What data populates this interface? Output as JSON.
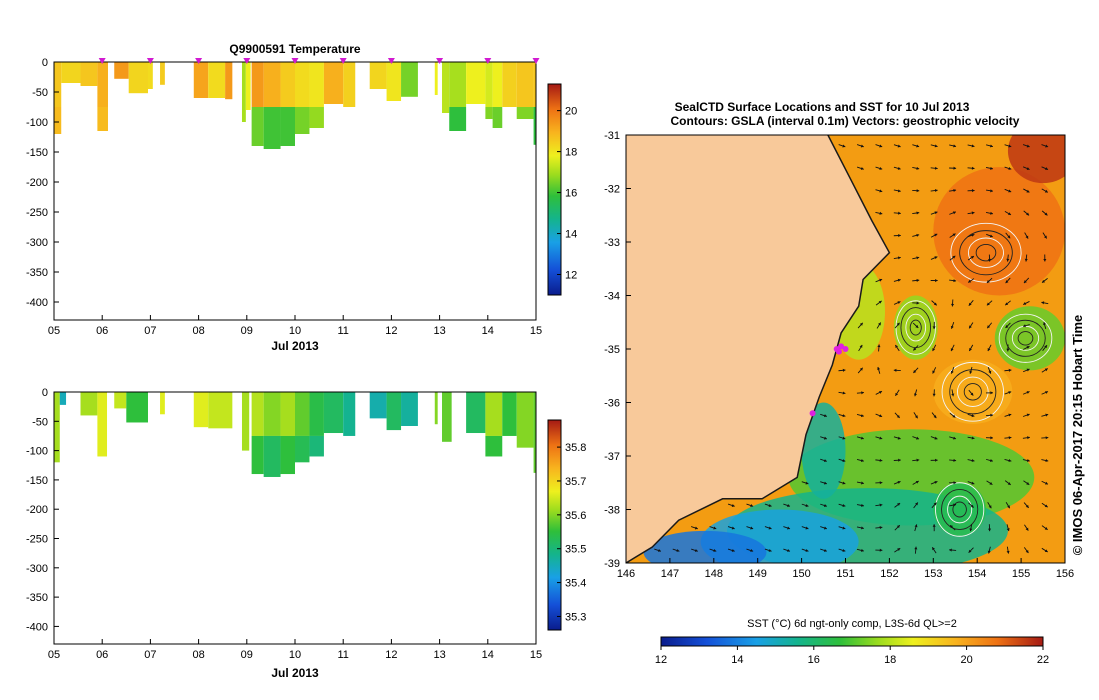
{
  "chart_data": [
    {
      "type": "heatmap",
      "title": "Q9900591  Temperature",
      "xlabel": "Jul 2013",
      "ylabel": "",
      "xlim": [
        5,
        15
      ],
      "ylim": [
        -430,
        0
      ],
      "x_ticks": [
        "05",
        "06",
        "07",
        "08",
        "09",
        "10",
        "11",
        "12",
        "13",
        "14",
        "15"
      ],
      "y_ticks": [
        "0",
        "-50",
        "-100",
        "-150",
        "-200",
        "-250",
        "-300",
        "-350",
        "-400"
      ],
      "profile_markers_day": [
        6.0,
        7.0,
        8.0,
        9.0,
        10.0,
        11.0,
        12.0,
        13.0,
        14.0,
        15.0
      ],
      "colorbar": {
        "ticks": [
          "12",
          "14",
          "16",
          "18",
          "20"
        ],
        "min": 11,
        "max": 21.3
      },
      "columns": [
        {
          "x0": 5.0,
          "x1": 5.15,
          "depth": 120,
          "value": 18.6,
          "deep": 18.8
        },
        {
          "x0": 5.15,
          "x1": 5.55,
          "depth": 35,
          "value": 18.3
        },
        {
          "x0": 5.55,
          "x1": 5.9,
          "depth": 40,
          "value": 18.6
        },
        {
          "x0": 5.9,
          "x1": 6.12,
          "depth": 115,
          "value": 19.0,
          "deep": 18.8
        },
        {
          "x0": 6.25,
          "x1": 6.55,
          "depth": 28,
          "value": 19.4
        },
        {
          "x0": 6.55,
          "x1": 6.95,
          "depth": 52,
          "value": 18.3
        },
        {
          "x0": 6.95,
          "x1": 7.05,
          "depth": 45,
          "value": 18.2
        },
        {
          "x0": 7.2,
          "x1": 7.3,
          "depth": 38,
          "value": 18.5
        },
        {
          "x0": 7.9,
          "x1": 8.2,
          "depth": 60,
          "value": 19.2
        },
        {
          "x0": 8.2,
          "x1": 8.55,
          "depth": 60,
          "value": 18.2
        },
        {
          "x0": 8.55,
          "x1": 8.7,
          "depth": 62,
          "value": 19.4
        },
        {
          "x0": 8.9,
          "x1": 8.98,
          "depth": 100,
          "value": 17.0
        },
        {
          "x0": 8.98,
          "x1": 9.08,
          "depth": 80,
          "value": 17.8
        },
        {
          "x0": 9.1,
          "x1": 9.35,
          "depth": 140,
          "value": 19.4,
          "deep": 16.4
        },
        {
          "x0": 9.35,
          "x1": 9.7,
          "depth": 145,
          "value": 19.0,
          "deep": 16.0
        },
        {
          "x0": 9.7,
          "x1": 10.0,
          "depth": 140,
          "value": 18.5,
          "deep": 16.0
        },
        {
          "x0": 10.0,
          "x1": 10.3,
          "depth": 120,
          "value": 18.2,
          "deep": 16.5
        },
        {
          "x0": 10.3,
          "x1": 10.6,
          "depth": 110,
          "value": 18.0,
          "deep": 16.8
        },
        {
          "x0": 10.6,
          "x1": 11.0,
          "depth": 70,
          "value": 19.0
        },
        {
          "x0": 11.0,
          "x1": 11.25,
          "depth": 75,
          "value": 18.4
        },
        {
          "x0": 11.55,
          "x1": 11.9,
          "depth": 45,
          "value": 18.3
        },
        {
          "x0": 11.9,
          "x1": 12.2,
          "depth": 65,
          "value": 18.0
        },
        {
          "x0": 12.2,
          "x1": 12.55,
          "depth": 58,
          "value": 16.5
        },
        {
          "x0": 12.9,
          "x1": 12.96,
          "depth": 55,
          "value": 17.8
        },
        {
          "x0": 13.05,
          "x1": 13.2,
          "depth": 85,
          "value": 17.2
        },
        {
          "x0": 13.2,
          "x1": 13.55,
          "depth": 115,
          "value": 17.0,
          "deep": 15.8
        },
        {
          "x0": 13.55,
          "x1": 13.95,
          "depth": 70,
          "value": 17.8
        },
        {
          "x0": 13.95,
          "x1": 14.1,
          "depth": 95,
          "value": 17.5,
          "deep": 16.6
        },
        {
          "x0": 14.1,
          "x1": 14.3,
          "depth": 110,
          "value": 17.8,
          "deep": 16.4
        },
        {
          "x0": 14.3,
          "x1": 14.6,
          "depth": 75,
          "value": 18.4
        },
        {
          "x0": 14.6,
          "x1": 14.95,
          "depth": 95,
          "value": 18.6,
          "deep": 16.6
        },
        {
          "x0": 14.95,
          "x1": 15.08,
          "depth": 138,
          "value": 18.6,
          "deep": 15.8
        }
      ]
    },
    {
      "type": "heatmap",
      "title": "",
      "xlabel": "Jul 2013",
      "ylabel": "",
      "xlim": [
        5,
        15
      ],
      "ylim": [
        -430,
        0
      ],
      "x_ticks": [
        "05",
        "06",
        "07",
        "08",
        "09",
        "10",
        "11",
        "12",
        "13",
        "14",
        "15"
      ],
      "y_ticks": [
        "0",
        "-50",
        "-100",
        "-150",
        "-200",
        "-250",
        "-300",
        "-350",
        "-400"
      ],
      "colorbar": {
        "ticks": [
          "35.3",
          "35.4",
          "35.5",
          "35.6",
          "35.7",
          "35.8"
        ],
        "min": 35.26,
        "max": 35.88
      },
      "columns": [
        {
          "x0": 5.0,
          "x1": 5.12,
          "depth": 120,
          "value": 35.62
        },
        {
          "x0": 5.12,
          "x1": 5.25,
          "depth": 22,
          "value": 35.45
        },
        {
          "x0": 5.55,
          "x1": 5.9,
          "depth": 40,
          "value": 35.62
        },
        {
          "x0": 5.9,
          "x1": 6.1,
          "depth": 110,
          "value": 35.66
        },
        {
          "x0": 6.25,
          "x1": 6.5,
          "depth": 28,
          "value": 35.64
        },
        {
          "x0": 6.5,
          "x1": 6.95,
          "depth": 52,
          "value": 35.55
        },
        {
          "x0": 7.2,
          "x1": 7.3,
          "depth": 38,
          "value": 35.66
        },
        {
          "x0": 7.9,
          "x1": 8.2,
          "depth": 60,
          "value": 35.66
        },
        {
          "x0": 8.2,
          "x1": 8.7,
          "depth": 62,
          "value": 35.64
        },
        {
          "x0": 8.9,
          "x1": 9.05,
          "depth": 100,
          "value": 35.62
        },
        {
          "x0": 9.1,
          "x1": 9.35,
          "depth": 140,
          "value": 35.63,
          "deep": 35.55
        },
        {
          "x0": 9.35,
          "x1": 9.7,
          "depth": 145,
          "value": 35.6,
          "deep": 35.52
        },
        {
          "x0": 9.7,
          "x1": 10.0,
          "depth": 140,
          "value": 35.62,
          "deep": 35.55
        },
        {
          "x0": 10.0,
          "x1": 10.3,
          "depth": 120,
          "value": 35.58,
          "deep": 35.53
        },
        {
          "x0": 10.3,
          "x1": 10.6,
          "depth": 110,
          "value": 35.54,
          "deep": 35.5
        },
        {
          "x0": 10.6,
          "x1": 11.0,
          "depth": 70,
          "value": 35.52
        },
        {
          "x0": 11.0,
          "x1": 11.25,
          "depth": 75,
          "value": 35.48
        },
        {
          "x0": 11.55,
          "x1": 11.9,
          "depth": 45,
          "value": 35.46
        },
        {
          "x0": 11.9,
          "x1": 12.2,
          "depth": 65,
          "value": 35.52
        },
        {
          "x0": 12.2,
          "x1": 12.55,
          "depth": 58,
          "value": 35.47
        },
        {
          "x0": 12.9,
          "x1": 12.96,
          "depth": 55,
          "value": 35.6
        },
        {
          "x0": 13.05,
          "x1": 13.25,
          "depth": 85,
          "value": 35.58
        },
        {
          "x0": 13.55,
          "x1": 13.95,
          "depth": 70,
          "value": 35.52
        },
        {
          "x0": 13.95,
          "x1": 14.3,
          "depth": 110,
          "value": 35.62,
          "deep": 35.55
        },
        {
          "x0": 14.3,
          "x1": 14.6,
          "depth": 75,
          "value": 35.55
        },
        {
          "x0": 14.6,
          "x1": 14.95,
          "depth": 95,
          "value": 35.6
        },
        {
          "x0": 14.95,
          "x1": 15.08,
          "depth": 138,
          "value": 35.58
        }
      ]
    },
    {
      "type": "heatmap",
      "title": "SealCTD Surface Locations and SST for 10 Jul 2013",
      "subtitle": "Contours: GSLA (interval 0.1m) Vectors: geostrophic velocity",
      "xlim": [
        146,
        156
      ],
      "ylim": [
        -39,
        -31
      ],
      "x_ticks": [
        "146",
        "147",
        "148",
        "149",
        "150",
        "151",
        "152",
        "153",
        "154",
        "155",
        "156"
      ],
      "y_ticks": [
        "-31",
        "-32",
        "-33",
        "-34",
        "-35",
        "-36",
        "-37",
        "-38",
        "-39"
      ],
      "colorbar_label": "SST (°C) 6d ngt-only comp, L3S-6d QL>=2",
      "colorbar": {
        "ticks": [
          "12",
          "14",
          "16",
          "18",
          "20",
          "22"
        ],
        "min": 12,
        "max": 22
      },
      "side_label": "© IMOS 06-Apr-2017 20:15 Hobart Time",
      "coastline": [
        [
          150.6,
          -31.0
        ],
        [
          151.1,
          -31.8
        ],
        [
          151.6,
          -32.6
        ],
        [
          152.0,
          -33.2
        ],
        [
          151.4,
          -33.7
        ],
        [
          151.3,
          -34.2
        ],
        [
          150.9,
          -34.7
        ],
        [
          150.7,
          -35.3
        ],
        [
          150.4,
          -35.9
        ],
        [
          150.1,
          -36.6
        ],
        [
          149.9,
          -37.4
        ],
        [
          149.1,
          -37.8
        ],
        [
          148.2,
          -37.8
        ],
        [
          147.2,
          -38.2
        ],
        [
          146.6,
          -38.7
        ],
        [
          146.0,
          -39.0
        ]
      ],
      "seal_locations": [
        [
          150.8,
          -35.0
        ],
        [
          150.9,
          -34.95
        ],
        [
          150.85,
          -35.05
        ],
        [
          151.0,
          -35.0
        ],
        [
          150.25,
          -36.2
        ]
      ],
      "eddies": [
        {
          "lon": 152.6,
          "lat": -34.6,
          "rx": 0.45,
          "ry": 0.5
        },
        {
          "lon": 153.9,
          "lat": -35.8,
          "rx": 0.7,
          "ry": 0.55
        },
        {
          "lon": 154.2,
          "lat": -33.2,
          "rx": 0.8,
          "ry": 0.55
        },
        {
          "lon": 155.1,
          "lat": -34.8,
          "rx": 0.6,
          "ry": 0.45
        },
        {
          "lon": 153.6,
          "lat": -38.0,
          "rx": 0.55,
          "ry": 0.5
        }
      ]
    }
  ]
}
